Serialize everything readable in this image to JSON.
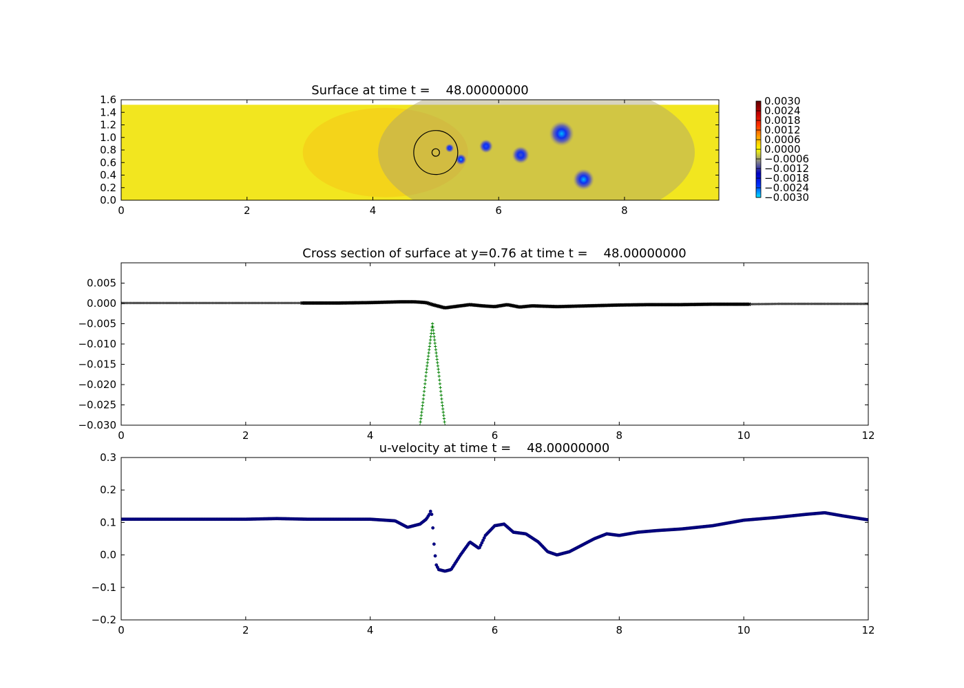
{
  "chart_data": [
    {
      "type": "heatmap",
      "title": "Surface at time t =    48.00000000",
      "xlim": [
        0,
        9.5
      ],
      "ylim": [
        0,
        1.6
      ],
      "xticks": [
        "0",
        "2",
        "4",
        "6",
        "8"
      ],
      "yticks": [
        "0.0",
        "0.2",
        "0.4",
        "0.6",
        "0.8",
        "1.0",
        "1.2",
        "1.4",
        "1.6"
      ],
      "domain_top_y": 1.52,
      "colorbar": {
        "range": [
          -0.003,
          0.003
        ],
        "ticks": [
          "0.0030",
          "0.0024",
          "0.0018",
          "0.0012",
          "0.0006",
          "0.0000",
          "−0.0006",
          "−0.0012",
          "−0.0018",
          "−0.0024",
          "−0.0030"
        ],
        "colors": [
          "#00e5ff",
          "#0030ff",
          "#0000c0",
          "#888888",
          "#ffff00",
          "#ffa500",
          "#ff3000",
          "#c00000",
          "#600000"
        ]
      },
      "background_level": 0.0002,
      "depressions": [
        {
          "x": 7.0,
          "y": 1.06,
          "amplitude": -0.003,
          "radius": 0.2
        },
        {
          "x": 7.35,
          "y": 0.33,
          "amplitude": -0.0028,
          "radius": 0.17
        },
        {
          "x": 5.4,
          "y": 0.65,
          "amplitude": -0.0025,
          "radius": 0.09
        },
        {
          "x": 5.8,
          "y": 0.86,
          "amplitude": -0.0018,
          "radius": 0.11
        },
        {
          "x": 5.22,
          "y": 0.83,
          "amplitude": -0.0018,
          "radius": 0.07
        },
        {
          "x": 6.35,
          "y": 0.72,
          "amplitude": -0.0012,
          "radius": 0.14
        }
      ],
      "circles": [
        {
          "x": 5.0,
          "y": 0.76,
          "r": 0.35
        },
        {
          "x": 5.0,
          "y": 0.76,
          "r": 0.06
        }
      ]
    },
    {
      "type": "scatter",
      "title": "Cross section of surface at y=0.76 at time t =    48.00000000",
      "xlim": [
        0,
        12
      ],
      "ylim": [
        -0.03,
        0.01
      ],
      "xticks": [
        "0",
        "2",
        "4",
        "6",
        "8",
        "10",
        "12"
      ],
      "yticks": [
        "−0.030",
        "−0.025",
        "−0.020",
        "−0.015",
        "−0.010",
        "−0.005",
        "0.000",
        "0.005"
      ],
      "series": [
        {
          "marker": "x",
          "color": "#000000",
          "x": [
            0,
            0.5,
            1,
            1.5,
            2,
            2.5,
            2.9,
            3.5,
            4,
            4.5,
            4.7,
            4.9,
            5.0,
            5.2,
            5.4,
            5.6,
            5.8,
            6.0,
            6.2,
            6.4,
            6.6,
            6.8,
            7.0,
            7.5,
            8,
            8.5,
            9,
            9.5,
            10.1,
            10.6,
            11,
            11.5,
            12
          ],
          "y": [
            0.0001,
            0.0001,
            0.0001,
            0.0001,
            0.0001,
            0.0001,
            0.0001,
            0.0001,
            0.0002,
            0.0004,
            0.0004,
            0.0002,
            -0.0003,
            -0.0011,
            -0.0007,
            -0.0003,
            -0.0006,
            -0.0008,
            -0.0003,
            -0.0009,
            -0.0006,
            -0.0007,
            -0.0008,
            -0.0006,
            -0.0004,
            -0.0003,
            -0.0003,
            -0.0002,
            -0.0002,
            -0.0001,
            -0.0001,
            -0.0001,
            -0.0001
          ]
        },
        {
          "marker": "+",
          "color": "#008000",
          "x": [
            4.8,
            4.85,
            4.9,
            4.95,
            5.0,
            5.05,
            5.1,
            5.15,
            5.2
          ],
          "y": [
            -0.03,
            -0.024,
            -0.017,
            -0.011,
            -0.005,
            -0.011,
            -0.017,
            -0.024,
            -0.03
          ]
        }
      ]
    },
    {
      "type": "scatter",
      "title": "u-velocity at time t =    48.00000000",
      "xlim": [
        0,
        12
      ],
      "ylim": [
        -0.2,
        0.3
      ],
      "xticks": [
        "0",
        "2",
        "4",
        "6",
        "8",
        "10",
        "12"
      ],
      "yticks": [
        "−0.2",
        "−0.1",
        "0.0",
        "0.1",
        "0.2",
        "0.3"
      ],
      "series": [
        {
          "marker": "o",
          "color": "#00008b",
          "x": [
            0,
            0.5,
            1,
            1.5,
            2,
            2.5,
            3,
            3.5,
            4,
            4.4,
            4.6,
            4.8,
            4.9,
            4.95,
            4.98,
            5.0,
            5.03,
            5.06,
            5.1,
            5.2,
            5.3,
            5.45,
            5.6,
            5.75,
            5.85,
            6.0,
            6.15,
            6.3,
            6.5,
            6.7,
            6.85,
            7.0,
            7.2,
            7.4,
            7.6,
            7.8,
            8.0,
            8.3,
            8.6,
            9.0,
            9.5,
            10.0,
            10.5,
            11.0,
            11.3,
            11.6,
            12.0
          ],
          "y": [
            0.11,
            0.11,
            0.11,
            0.11,
            0.11,
            0.112,
            0.11,
            0.11,
            0.11,
            0.105,
            0.085,
            0.095,
            0.11,
            0.125,
            0.14,
            0.1,
            0.02,
            -0.03,
            -0.045,
            -0.05,
            -0.045,
            0.0,
            0.04,
            0.02,
            0.06,
            0.09,
            0.095,
            0.07,
            0.065,
            0.04,
            0.01,
            0.0,
            0.01,
            0.03,
            0.05,
            0.065,
            0.06,
            0.07,
            0.075,
            0.08,
            0.09,
            0.107,
            0.115,
            0.125,
            0.13,
            0.12,
            0.108
          ]
        }
      ]
    }
  ]
}
